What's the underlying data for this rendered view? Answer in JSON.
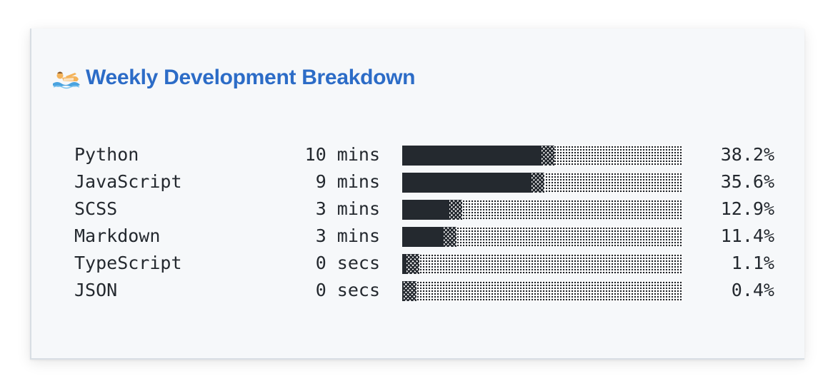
{
  "header": {
    "icon": "swimmer-icon",
    "title": "Weekly Development Breakdown"
  },
  "stats": [
    {
      "language": "Python",
      "time": "10 mins",
      "percent_label": "38.2%",
      "percent": 38.2
    },
    {
      "language": "JavaScript",
      "time": "9 mins",
      "percent_label": "35.6%",
      "percent": 35.6
    },
    {
      "language": "SCSS",
      "time": "3 mins",
      "percent_label": "12.9%",
      "percent": 12.9
    },
    {
      "language": "Markdown",
      "time": "3 mins",
      "percent_label": "11.4%",
      "percent": 11.4
    },
    {
      "language": "TypeScript",
      "time": "0 secs",
      "percent_label": "1.1%",
      "percent": 1.1
    },
    {
      "language": "JSON",
      "time": "0 secs",
      "percent_label": "0.4%",
      "percent": 0.4
    }
  ],
  "colors": {
    "title": "#2c6cc7",
    "text": "#24292f",
    "card_background": "#f6f8fa",
    "bar_fill": "#24292f"
  }
}
